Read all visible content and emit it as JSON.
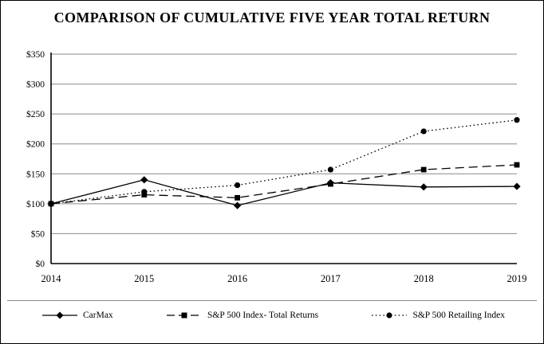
{
  "title": "COMPARISON OF CUMULATIVE FIVE YEAR TOTAL RETURN",
  "chart_data": {
    "type": "line",
    "title": "COMPARISON OF CUMULATIVE FIVE YEAR TOTAL RETURN",
    "categories": [
      "2014",
      "2015",
      "2016",
      "2017",
      "2018",
      "2019"
    ],
    "series": [
      {
        "name": "CarMax",
        "values": [
          100,
          140,
          97,
          135,
          128,
          129
        ],
        "line_style": "solid",
        "marker": "diamond",
        "color": "#000000"
      },
      {
        "name": "S&P 500 Index- Total Returns",
        "values": [
          100,
          115,
          110,
          133,
          157,
          165
        ],
        "line_style": "dashed",
        "marker": "square",
        "color": "#000000"
      },
      {
        "name": "S&P 500 Retailing Index",
        "values": [
          100,
          120,
          131,
          157,
          221,
          240
        ],
        "line_style": "dotted",
        "marker": "circle",
        "color": "#000000"
      }
    ],
    "xlabel": "",
    "ylabel": "",
    "ylim": [
      0,
      350
    ],
    "ytick_step": 50,
    "ytick_labels": [
      "$0",
      "$50",
      "$100",
      "$150",
      "$200",
      "$250",
      "$300",
      "$350"
    ],
    "grid": true,
    "legend_position": "bottom",
    "colors": {
      "series": "#000000",
      "grid": "#8a8a8a",
      "axis": "#000000",
      "background": "#ffffff",
      "frame_border": "#000000"
    }
  }
}
